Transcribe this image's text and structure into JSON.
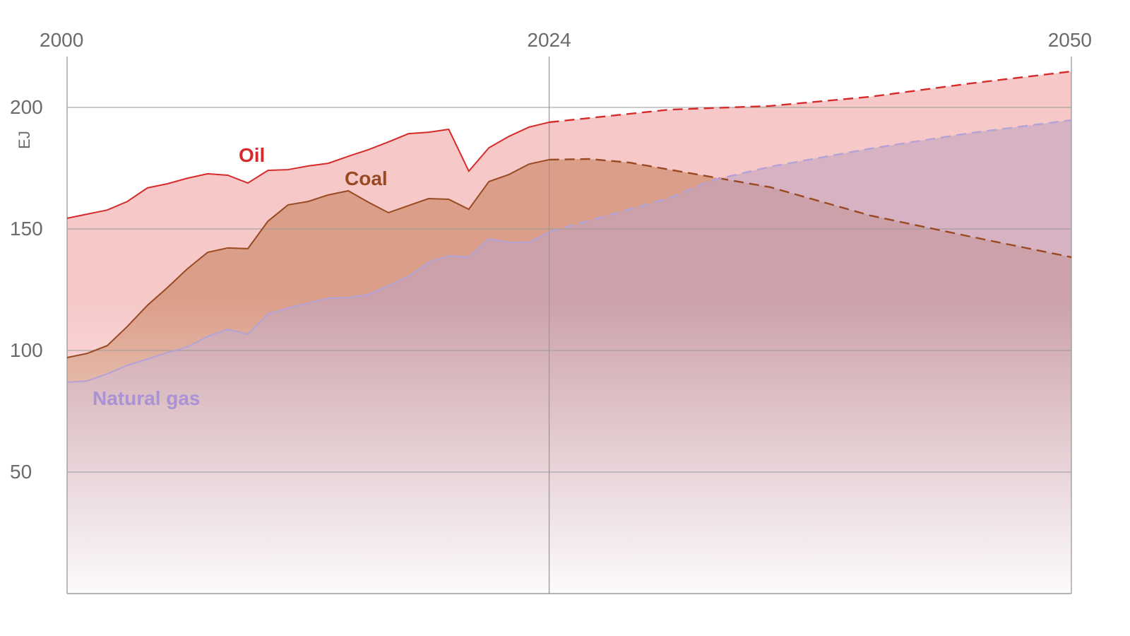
{
  "chart_data": {
    "type": "area",
    "title": "",
    "xlabel": "",
    "ylabel": "EJ",
    "xlim": [
      2000,
      2050
    ],
    "ylim": [
      0,
      215
    ],
    "x_ticks": [
      "2000",
      "2024",
      "2050"
    ],
    "y_ticks": [
      "200",
      "150",
      "100",
      "50"
    ],
    "grid": true,
    "projection_start": 2024,
    "series": [
      {
        "name": "Oil",
        "color": "#d62b2b",
        "fill": "#f2a3a3",
        "historical": [
          [
            2000,
            154.4
          ],
          [
            2001,
            156.1
          ],
          [
            2002,
            157.8
          ],
          [
            2003,
            161.3
          ],
          [
            2004,
            166.9
          ],
          [
            2005,
            168.6
          ],
          [
            2006,
            170.9
          ],
          [
            2007,
            172.7
          ],
          [
            2008,
            172.1
          ],
          [
            2009,
            168.9
          ],
          [
            2010,
            174.1
          ],
          [
            2011,
            174.4
          ],
          [
            2012,
            175.9
          ],
          [
            2013,
            177.0
          ],
          [
            2014,
            179.9
          ],
          [
            2015,
            182.6
          ],
          [
            2016,
            185.8
          ],
          [
            2017,
            189.2
          ],
          [
            2018,
            189.8
          ],
          [
            2019,
            191.0
          ],
          [
            2020,
            173.8
          ],
          [
            2021,
            183.4
          ],
          [
            2022,
            188.1
          ],
          [
            2023,
            191.9
          ],
          [
            2024,
            193.9
          ]
        ],
        "projection": [
          [
            2024,
            193.9
          ],
          [
            2027,
            196.5
          ],
          [
            2030,
            199.1
          ],
          [
            2035,
            200.6
          ],
          [
            2040,
            204.4
          ],
          [
            2045,
            209.9
          ],
          [
            2050,
            214.8
          ]
        ]
      },
      {
        "name": "Coal",
        "color": "#9a4a22",
        "fill": "#c8825f",
        "historical": [
          [
            2000,
            97.1
          ],
          [
            2001,
            98.8
          ],
          [
            2002,
            102.0
          ],
          [
            2003,
            109.9
          ],
          [
            2004,
            118.6
          ],
          [
            2005,
            125.9
          ],
          [
            2006,
            133.7
          ],
          [
            2007,
            140.4
          ],
          [
            2008,
            142.2
          ],
          [
            2009,
            141.9
          ],
          [
            2010,
            153.2
          ],
          [
            2011,
            159.9
          ],
          [
            2012,
            161.3
          ],
          [
            2013,
            164.0
          ],
          [
            2014,
            165.7
          ],
          [
            2015,
            161.0
          ],
          [
            2016,
            156.7
          ],
          [
            2017,
            159.6
          ],
          [
            2018,
            162.5
          ],
          [
            2019,
            162.2
          ],
          [
            2020,
            158.1
          ],
          [
            2021,
            169.5
          ],
          [
            2022,
            172.4
          ],
          [
            2023,
            176.7
          ],
          [
            2024,
            178.5
          ]
        ],
        "projection": [
          [
            2024,
            178.5
          ],
          [
            2026,
            178.8
          ],
          [
            2028,
            177.3
          ],
          [
            2030,
            174.4
          ],
          [
            2035,
            167.2
          ],
          [
            2040,
            155.5
          ],
          [
            2045,
            146.8
          ],
          [
            2050,
            138.4
          ]
        ]
      },
      {
        "name": "Natural gas",
        "color": "#b3a3d6",
        "fill": "#c2a3bf",
        "historical": [
          [
            2000,
            86.9
          ],
          [
            2001,
            87.5
          ],
          [
            2002,
            90.4
          ],
          [
            2003,
            93.9
          ],
          [
            2004,
            96.5
          ],
          [
            2005,
            99.1
          ],
          [
            2006,
            101.5
          ],
          [
            2007,
            105.8
          ],
          [
            2008,
            108.7
          ],
          [
            2009,
            106.7
          ],
          [
            2010,
            115.1
          ],
          [
            2011,
            117.4
          ],
          [
            2012,
            119.5
          ],
          [
            2013,
            121.5
          ],
          [
            2014,
            121.8
          ],
          [
            2015,
            123.0
          ],
          [
            2016,
            126.7
          ],
          [
            2017,
            130.5
          ],
          [
            2018,
            136.3
          ],
          [
            2019,
            139.0
          ],
          [
            2020,
            138.4
          ],
          [
            2021,
            145.9
          ],
          [
            2022,
            144.5
          ],
          [
            2023,
            144.5
          ],
          [
            2024,
            148.8
          ]
        ],
        "projection": [
          [
            2024,
            148.8
          ],
          [
            2030,
            162.8
          ],
          [
            2032,
            169.8
          ],
          [
            2035,
            175.6
          ],
          [
            2040,
            183.1
          ],
          [
            2045,
            189.5
          ],
          [
            2050,
            194.8
          ]
        ]
      }
    ],
    "annotations": [
      "Oil",
      "Coal",
      "Natural gas"
    ]
  }
}
